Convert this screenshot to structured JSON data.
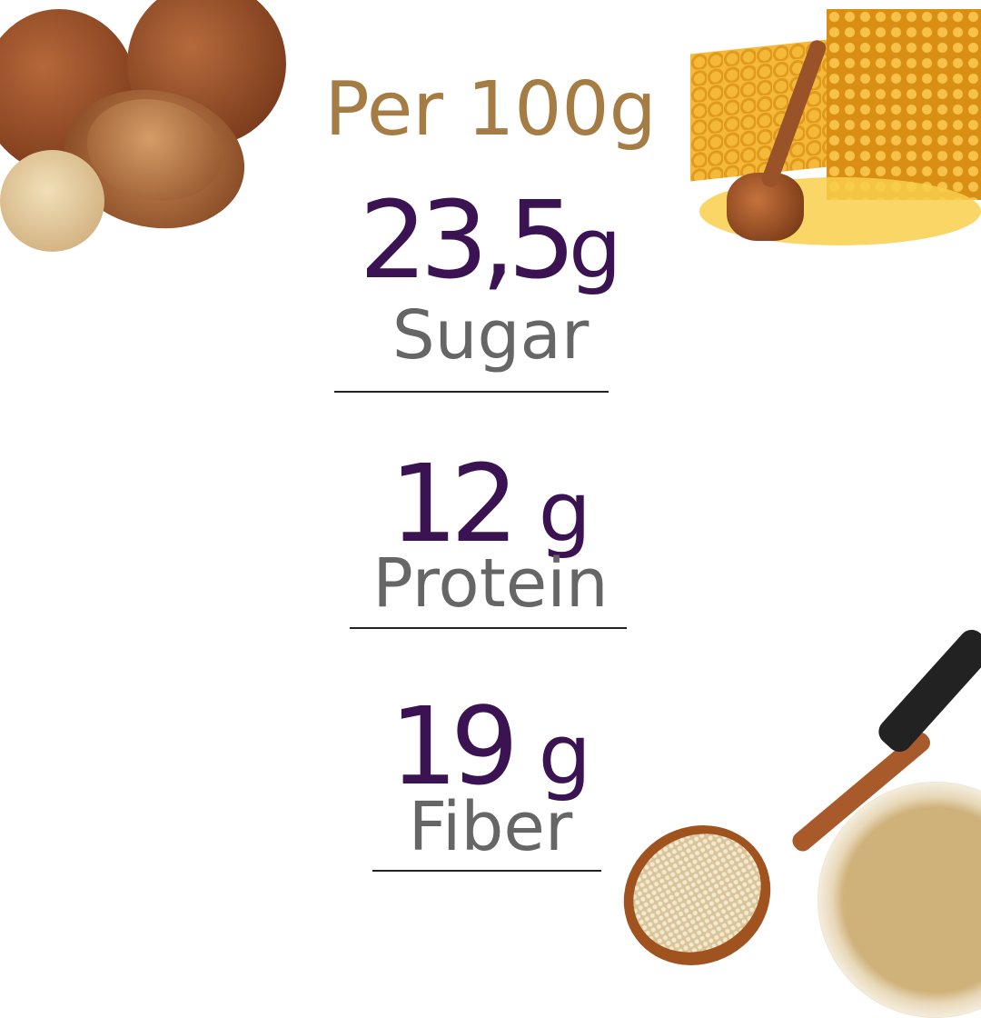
{
  "header": {
    "title": "Per 100g"
  },
  "nutrients": [
    {
      "value": "23,5",
      "unit": "g",
      "label": "Sugar"
    },
    {
      "value": "12",
      "unit": "g",
      "label": "Protein"
    },
    {
      "value": "19",
      "unit": "g",
      "label": "Fiber"
    }
  ],
  "images": {
    "top_left": "hazelnuts",
    "top_right": "honeycomb-with-dipper",
    "bottom_right": "spoon-with-sesame-and-tahini-jar"
  },
  "colors": {
    "title": "#a67c45",
    "value": "#3b1352",
    "label": "#666666"
  }
}
